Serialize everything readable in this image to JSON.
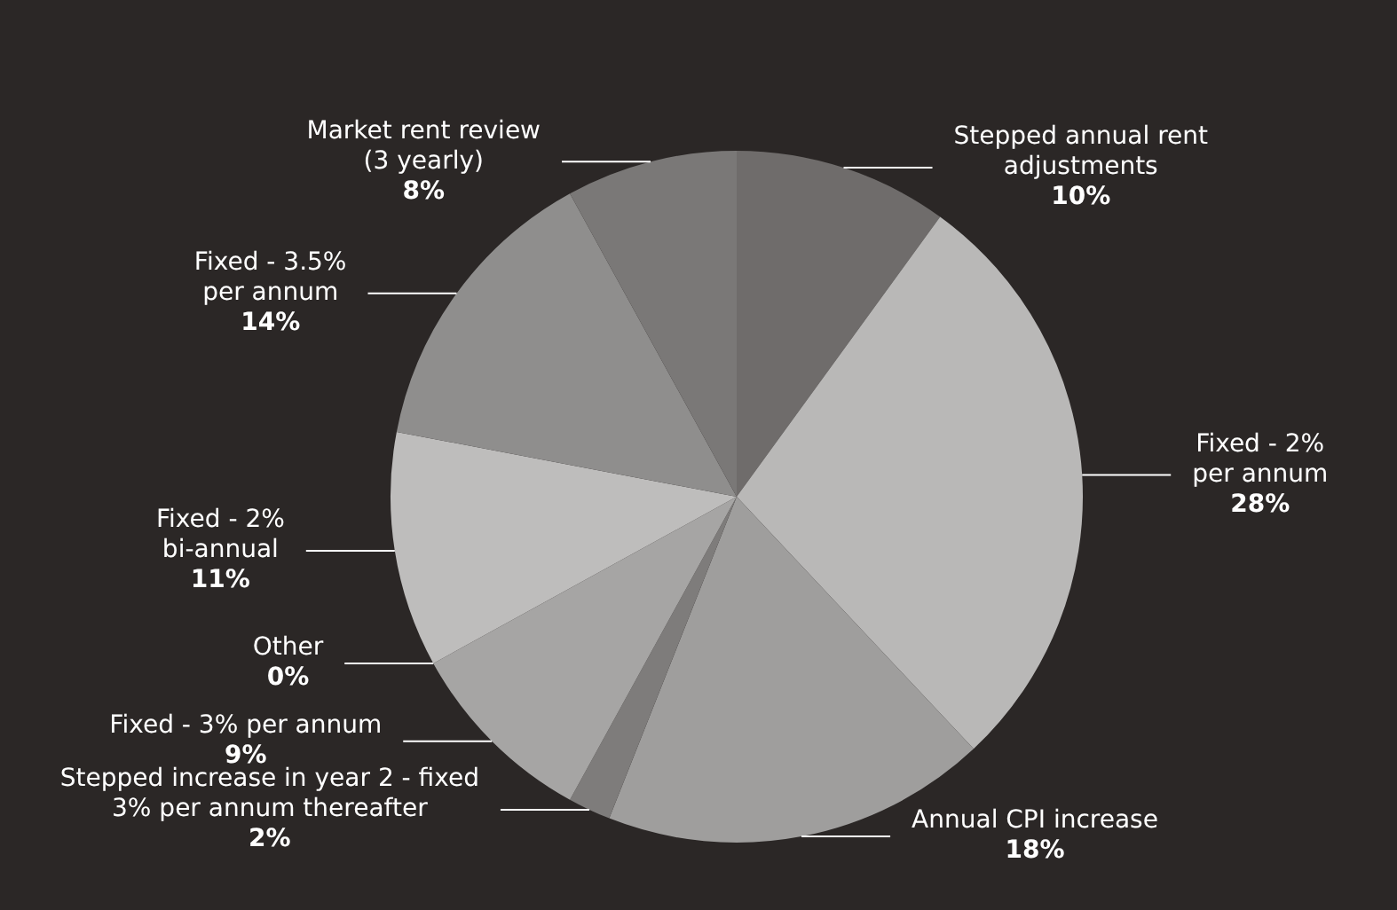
{
  "chart_data": {
    "type": "pie",
    "categories": [
      "Stepped annual rent\nadjustments",
      "Fixed - 2%\nper annum",
      "Annual CPI increase",
      "Stepped increase in year 2 - fixed\n3% per annum thereafter",
      "Fixed - 3% per annum",
      "Other",
      "Fixed - 2%\nbi-annual",
      "Fixed - 3.5%\nper annum",
      "Market rent review\n(3 yearly)"
    ],
    "values": [
      10,
      28,
      18,
      2,
      9,
      0,
      11,
      14,
      8
    ],
    "value_labels": [
      "10%",
      "28%",
      "18%",
      "2%",
      "9%",
      "0%",
      "11%",
      "14%",
      "8%"
    ],
    "colors": [
      "#6f6c6b",
      "#b9b8b7",
      "#9f9e9d",
      "#7e7c7b",
      "#a6a5a4",
      "#8a8887",
      "#bebdbc",
      "#8f8e8d",
      "#7a7877"
    ]
  }
}
